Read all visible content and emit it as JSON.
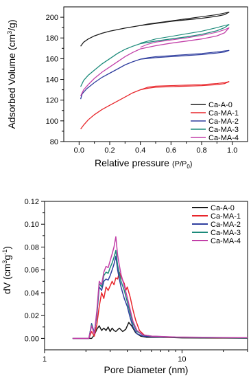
{
  "chart_data": [
    {
      "type": "line",
      "xlabel": "Relative pressure",
      "xlabel_math": "(P/P0)",
      "ylabel": "Adsorbed Volume (cm3/g)",
      "xlim": [
        -0.1,
        1.1
      ],
      "ylim": [
        80,
        210
      ],
      "xticks": [
        "0.0",
        "0.2",
        "0.4",
        "0.6",
        "0.8",
        "1.0"
      ],
      "yticks": [
        "80",
        "100",
        "120",
        "140",
        "160",
        "180",
        "200"
      ],
      "grid": false,
      "legend_position": "bottom-right",
      "series": [
        {
          "name": "Ca-A-0",
          "color": "#1a1a1a",
          "adsorption": [
            [
              0.01,
              172
            ],
            [
              0.03,
              176
            ],
            [
              0.06,
              179
            ],
            [
              0.1,
              182
            ],
            [
              0.15,
              184.5
            ],
            [
              0.2,
              186.5
            ],
            [
              0.3,
              189.5
            ],
            [
              0.4,
              192
            ],
            [
              0.5,
              194
            ],
            [
              0.6,
              196
            ],
            [
              0.7,
              197.5
            ],
            [
              0.8,
              199
            ],
            [
              0.9,
              201
            ],
            [
              0.95,
              202.5
            ],
            [
              0.98,
              205
            ]
          ],
          "desorption": [
            [
              0.98,
              205
            ],
            [
              0.95,
              204
            ],
            [
              0.9,
              202.5
            ],
            [
              0.8,
              200.5
            ],
            [
              0.7,
              198.5
            ],
            [
              0.6,
              196.5
            ],
            [
              0.5,
              194.5
            ],
            [
              0.45,
              193.5
            ],
            [
              0.4,
              192
            ]
          ]
        },
        {
          "name": "Ca-MA-1",
          "color": "#e8262b",
          "adsorption": [
            [
              0.01,
              92
            ],
            [
              0.03,
              96
            ],
            [
              0.06,
              101
            ],
            [
              0.1,
              106
            ],
            [
              0.15,
              111
            ],
            [
              0.2,
              115
            ],
            [
              0.25,
              119
            ],
            [
              0.3,
              123
            ],
            [
              0.35,
              127
            ],
            [
              0.4,
              130
            ],
            [
              0.45,
              131.5
            ],
            [
              0.5,
              132.5
            ],
            [
              0.6,
              133
            ],
            [
              0.7,
              133.5
            ],
            [
              0.8,
              134
            ],
            [
              0.9,
              135
            ],
            [
              0.95,
              136
            ],
            [
              0.98,
              138
            ]
          ],
          "desorption": [
            [
              0.98,
              138
            ],
            [
              0.95,
              137
            ],
            [
              0.9,
              136
            ],
            [
              0.8,
              135
            ],
            [
              0.7,
              134.5
            ],
            [
              0.6,
              134
            ],
            [
              0.5,
              133.5
            ],
            [
              0.45,
              132.5
            ],
            [
              0.4,
              130
            ]
          ]
        },
        {
          "name": "Ca-MA-2",
          "color": "#2e3d9e",
          "adsorption": [
            [
              0.01,
              121
            ],
            [
              0.02,
              126
            ],
            [
              0.05,
              131
            ],
            [
              0.1,
              137
            ],
            [
              0.15,
              142
            ],
            [
              0.2,
              146
            ],
            [
              0.25,
              150
            ],
            [
              0.3,
              154
            ],
            [
              0.35,
              157
            ],
            [
              0.4,
              159.5
            ],
            [
              0.5,
              161
            ],
            [
              0.6,
              162
            ],
            [
              0.7,
              163
            ],
            [
              0.8,
              164
            ],
            [
              0.9,
              165.5
            ],
            [
              0.95,
              166.5
            ],
            [
              0.98,
              168
            ]
          ],
          "desorption": [
            [
              0.98,
              168
            ],
            [
              0.95,
              167.5
            ],
            [
              0.9,
              166.5
            ],
            [
              0.8,
              165
            ],
            [
              0.7,
              164
            ],
            [
              0.6,
              163
            ],
            [
              0.5,
              162
            ],
            [
              0.45,
              161
            ],
            [
              0.4,
              159.5
            ]
          ]
        },
        {
          "name": "Ca-MA-3",
          "color": "#1b8a7a",
          "adsorption": [
            [
              0.01,
              133
            ],
            [
              0.03,
              139
            ],
            [
              0.06,
              144
            ],
            [
              0.1,
              149
            ],
            [
              0.15,
              155
            ],
            [
              0.2,
              160
            ],
            [
              0.25,
              165
            ],
            [
              0.3,
              169
            ],
            [
              0.35,
              172
            ],
            [
              0.4,
              174.5
            ],
            [
              0.5,
              177
            ],
            [
              0.6,
              179
            ],
            [
              0.7,
              181
            ],
            [
              0.8,
              183.5
            ],
            [
              0.9,
              187
            ],
            [
              0.95,
              190
            ],
            [
              0.98,
              193
            ]
          ],
          "desorption": [
            [
              0.98,
              193
            ],
            [
              0.95,
              192
            ],
            [
              0.9,
              190
            ],
            [
              0.8,
              186.5
            ],
            [
              0.7,
              184
            ],
            [
              0.6,
              181.5
            ],
            [
              0.5,
              179
            ],
            [
              0.45,
              177
            ],
            [
              0.4,
              175
            ]
          ]
        },
        {
          "name": "Ca-MA-4",
          "color": "#c23fa8",
          "adsorption": [
            [
              0.01,
              124
            ],
            [
              0.03,
              130
            ],
            [
              0.06,
              135
            ],
            [
              0.1,
              141
            ],
            [
              0.15,
              147
            ],
            [
              0.2,
              152
            ],
            [
              0.25,
              157
            ],
            [
              0.3,
              162
            ],
            [
              0.35,
              166
            ],
            [
              0.4,
              169.5
            ],
            [
              0.5,
              172.5
            ],
            [
              0.6,
              175
            ],
            [
              0.7,
              177
            ],
            [
              0.8,
              179
            ],
            [
              0.9,
              182
            ],
            [
              0.95,
              185
            ],
            [
              0.98,
              190
            ]
          ],
          "desorption": [
            [
              0.98,
              190
            ],
            [
              0.95,
              188
            ],
            [
              0.9,
              185.5
            ],
            [
              0.8,
              182.5
            ],
            [
              0.7,
              180
            ],
            [
              0.6,
              178
            ],
            [
              0.5,
              176
            ],
            [
              0.45,
              174
            ],
            [
              0.4,
              171
            ]
          ]
        }
      ]
    },
    {
      "type": "line",
      "xlabel": "Pore Diameter (nm)",
      "ylabel": "dV (cm3g-1)",
      "xscale": "log",
      "xlim": [
        1,
        30
      ],
      "ylim": [
        -0.01,
        0.12
      ],
      "xticks": [
        "1",
        "10"
      ],
      "yticks": [
        "0.00",
        "0.02",
        "0.04",
        "0.06",
        "0.08",
        "0.10",
        "0.12"
      ],
      "grid": false,
      "legend_position": "top-right",
      "series": [
        {
          "name": "Ca-A-0",
          "color": "#1a1a1a",
          "points": [
            [
              1.6,
              0
            ],
            [
              2.2,
              0
            ],
            [
              2.3,
              0.003
            ],
            [
              2.4,
              0.008
            ],
            [
              2.5,
              0.011
            ],
            [
              2.6,
              0.007
            ],
            [
              2.7,
              0.009
            ],
            [
              2.8,
              0.007
            ],
            [
              2.9,
              0.01
            ],
            [
              3.0,
              0.006
            ],
            [
              3.1,
              0.009
            ],
            [
              3.2,
              0.007
            ],
            [
              3.3,
              0.006
            ],
            [
              3.5,
              0.009
            ],
            [
              3.7,
              0.006
            ],
            [
              3.9,
              0.008
            ],
            [
              4.1,
              0.014
            ],
            [
              4.3,
              0.011
            ],
            [
              4.6,
              0.005
            ],
            [
              5.0,
              0.002
            ],
            [
              5.5,
              0.001
            ],
            [
              7,
              0.001
            ],
            [
              10,
              0.0005
            ],
            [
              20,
              0.0003
            ],
            [
              30,
              0.0002
            ]
          ]
        },
        {
          "name": "Ca-MA-1",
          "color": "#e8262b",
          "points": [
            [
              1.6,
              0
            ],
            [
              2.1,
              0
            ],
            [
              2.2,
              0.006
            ],
            [
              2.3,
              0.002
            ],
            [
              2.4,
              0.012
            ],
            [
              2.5,
              0.028
            ],
            [
              2.6,
              0.04
            ],
            [
              2.7,
              0.035
            ],
            [
              2.8,
              0.045
            ],
            [
              2.9,
              0.042
            ],
            [
              3.0,
              0.046
            ],
            [
              3.1,
              0.05
            ],
            [
              3.2,
              0.047
            ],
            [
              3.3,
              0.053
            ],
            [
              3.4,
              0.052
            ],
            [
              3.5,
              0.058
            ],
            [
              3.6,
              0.054
            ],
            [
              3.8,
              0.048
            ],
            [
              3.9,
              0.042
            ],
            [
              4.0,
              0.045
            ],
            [
              4.2,
              0.036
            ],
            [
              4.4,
              0.025
            ],
            [
              4.6,
              0.016
            ],
            [
              4.9,
              0.007
            ],
            [
              5.3,
              0.003
            ],
            [
              6,
              0.002
            ],
            [
              8,
              0.001
            ],
            [
              12,
              0.0008
            ],
            [
              30,
              0.0004
            ]
          ]
        },
        {
          "name": "Ca-MA-2",
          "color": "#2e3d9e",
          "points": [
            [
              1.6,
              0
            ],
            [
              2.1,
              0
            ],
            [
              2.2,
              0.013
            ],
            [
              2.3,
              0.005
            ],
            [
              2.4,
              0.02
            ],
            [
              2.5,
              0.045
            ],
            [
              2.6,
              0.042
            ],
            [
              2.7,
              0.05
            ],
            [
              2.8,
              0.052
            ],
            [
              2.9,
              0.051
            ],
            [
              3.0,
              0.055
            ],
            [
              3.1,
              0.06
            ],
            [
              3.2,
              0.065
            ],
            [
              3.3,
              0.072
            ],
            [
              3.4,
              0.06
            ],
            [
              3.5,
              0.052
            ],
            [
              3.6,
              0.045
            ],
            [
              3.8,
              0.035
            ],
            [
              4.0,
              0.028
            ],
            [
              4.2,
              0.018
            ],
            [
              4.4,
              0.01
            ],
            [
              4.7,
              0.004
            ],
            [
              5.2,
              0.002
            ],
            [
              6,
              0.0015
            ],
            [
              9,
              0.001
            ],
            [
              30,
              0.0005
            ]
          ]
        },
        {
          "name": "Ca-MA-3",
          "color": "#1b8a7a",
          "points": [
            [
              1.6,
              0
            ],
            [
              2.1,
              0
            ],
            [
              2.2,
              0.012
            ],
            [
              2.3,
              0.004
            ],
            [
              2.4,
              0.022
            ],
            [
              2.5,
              0.048
            ],
            [
              2.6,
              0.045
            ],
            [
              2.7,
              0.055
            ],
            [
              2.8,
              0.058
            ],
            [
              2.9,
              0.057
            ],
            [
              3.0,
              0.062
            ],
            [
              3.1,
              0.066
            ],
            [
              3.2,
              0.071
            ],
            [
              3.3,
              0.077
            ],
            [
              3.4,
              0.064
            ],
            [
              3.5,
              0.057
            ],
            [
              3.6,
              0.05
            ],
            [
              3.8,
              0.042
            ],
            [
              4.0,
              0.032
            ],
            [
              4.2,
              0.022
            ],
            [
              4.4,
              0.013
            ],
            [
              4.7,
              0.006
            ],
            [
              5.2,
              0.003
            ],
            [
              6,
              0.002
            ],
            [
              9,
              0.001
            ],
            [
              30,
              0.0005
            ]
          ]
        },
        {
          "name": "Ca-MA-4",
          "color": "#c23fa8",
          "points": [
            [
              1.6,
              0
            ],
            [
              2.1,
              0
            ],
            [
              2.2,
              0.011
            ],
            [
              2.3,
              0.004
            ],
            [
              2.4,
              0.024
            ],
            [
              2.5,
              0.05
            ],
            [
              2.6,
              0.047
            ],
            [
              2.7,
              0.058
            ],
            [
              2.8,
              0.063
            ],
            [
              2.9,
              0.062
            ],
            [
              3.0,
              0.068
            ],
            [
              3.1,
              0.074
            ],
            [
              3.2,
              0.08
            ],
            [
              3.3,
              0.089
            ],
            [
              3.4,
              0.073
            ],
            [
              3.5,
              0.064
            ],
            [
              3.6,
              0.056
            ],
            [
              3.8,
              0.046
            ],
            [
              4.0,
              0.036
            ],
            [
              4.2,
              0.025
            ],
            [
              4.4,
              0.015
            ],
            [
              4.7,
              0.007
            ],
            [
              5.2,
              0.003
            ],
            [
              6,
              0.002
            ],
            [
              9,
              0.0012
            ],
            [
              30,
              0.0006
            ]
          ]
        }
      ]
    }
  ]
}
